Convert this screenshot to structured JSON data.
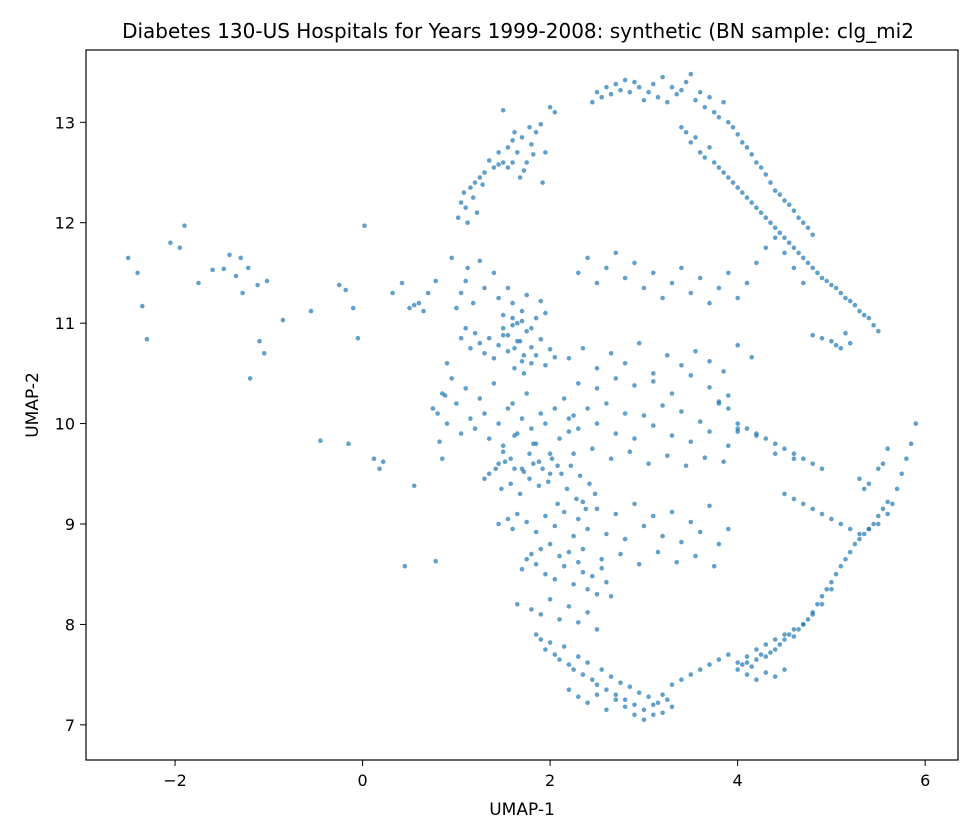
{
  "chart_data": {
    "type": "scatter",
    "title": "Diabetes 130-US Hospitals for Years 1999-2008: synthetic (BN sample: clg_mi2",
    "xlabel": "UMAP-1",
    "ylabel": "UMAP-2",
    "xlim": [
      -2.95,
      6.35
    ],
    "ylim": [
      6.65,
      13.72
    ],
    "xticks": [
      -2,
      0,
      2,
      4,
      6
    ],
    "yticks": [
      7,
      8,
      9,
      10,
      11,
      12,
      13
    ],
    "xtick_labels": [
      "−2",
      "0",
      "2",
      "4",
      "6"
    ],
    "ytick_labels": [
      "7",
      "8",
      "9",
      "10",
      "11",
      "12",
      "13"
    ],
    "grid": false,
    "legend": "none",
    "point_color": "#1f77b4",
    "series": [
      {
        "x": [
          -2.5,
          -2.4,
          -2.35,
          -2.3,
          -2.05,
          -1.95,
          -1.9,
          -1.75,
          -1.6,
          -1.48,
          -1.42,
          -1.35,
          -1.3,
          -1.28,
          -1.22,
          -1.12,
          -1.1,
          -1.05,
          -1.02,
          -1.2,
          -0.85,
          -0.55,
          -0.25,
          -0.18,
          -0.1,
          -0.05,
          0.02,
          -0.45,
          -0.15,
          0.12,
          0.18,
          0.22,
          0.32,
          0.42,
          0.45,
          0.5,
          0.55,
          0.6,
          0.65,
          0.7,
          0.75,
          0.78,
          0.82,
          0.85,
          0.88,
          0.9,
          0.95,
          0.55,
          0.78,
          1.02,
          1.05,
          1.08,
          1.1,
          1.12,
          1.15,
          1.18,
          1.2,
          1.22,
          1.25,
          1.28,
          1.3,
          1.35,
          1.4,
          1.45,
          1.5,
          1.55,
          1.6,
          1.62,
          1.65,
          1.7,
          1.75,
          1.78,
          1.82,
          1.85,
          1.9,
          1.92,
          1.95,
          2.0,
          2.05,
          1.5,
          1.45,
          1.55,
          1.6,
          1.68,
          1.72,
          1.8,
          1.0,
          1.05,
          1.1,
          1.12,
          1.18,
          1.25,
          1.3,
          1.4,
          1.45,
          1.5,
          1.55,
          1.6,
          1.65,
          1.7,
          1.75,
          1.8,
          1.85,
          1.9,
          1.95,
          1.5,
          1.55,
          1.62,
          1.68,
          1.72,
          0.8,
          0.85,
          0.9,
          0.95,
          1.0,
          1.05,
          1.1,
          1.15,
          1.2,
          1.25,
          1.3,
          1.35,
          1.4,
          1.45,
          1.5,
          1.55,
          1.6,
          1.65,
          1.7,
          1.75,
          1.8,
          1.85,
          1.9,
          1.95,
          2.0,
          2.05,
          2.1,
          2.15,
          2.2,
          2.25,
          1.45,
          1.5,
          1.58,
          1.62,
          1.7,
          1.78,
          1.82,
          1.88,
          2.0,
          2.08,
          1.3,
          1.35,
          1.42,
          1.48,
          1.52,
          1.58,
          1.62,
          1.68,
          1.72,
          1.78,
          1.82,
          1.88,
          1.92,
          1.98,
          2.02,
          2.08,
          2.12,
          2.18,
          2.22,
          2.28,
          2.32,
          2.38,
          2.42,
          2.48,
          1.45,
          1.55,
          1.6,
          1.65,
          1.75,
          1.85,
          1.95,
          2.05,
          2.15,
          2.25,
          2.35,
          1.7,
          1.75,
          1.8,
          1.85,
          1.9,
          1.95,
          2.0,
          2.05,
          2.1,
          2.15,
          2.2,
          2.25,
          2.3,
          2.35,
          2.4,
          2.45,
          2.5,
          2.55,
          2.6,
          2.65,
          1.65,
          1.8,
          1.9,
          2.0,
          2.1,
          2.2,
          2.3,
          2.4,
          2.5,
          1.85,
          1.9,
          1.95,
          2.0,
          2.05,
          2.1,
          2.15,
          2.2,
          2.25,
          2.3,
          2.35,
          2.4,
          2.45,
          2.5,
          2.55,
          2.6,
          2.65,
          2.7,
          2.75,
          2.8,
          2.85,
          2.9,
          2.95,
          3.0,
          3.05,
          3.1,
          3.15,
          3.2,
          3.25,
          3.3,
          2.2,
          2.3,
          2.4,
          2.5,
          2.6,
          2.7,
          2.8,
          2.9,
          3.0,
          3.1,
          3.2,
          3.3,
          3.4,
          3.5,
          3.6,
          3.7,
          3.8,
          3.9,
          4.0,
          4.1,
          4.2,
          4.3,
          4.4,
          4.5,
          4.6,
          4.7,
          4.8,
          4.9,
          5.0,
          2.45,
          2.5,
          2.55,
          2.6,
          2.65,
          2.7,
          2.75,
          2.8,
          2.85,
          2.9,
          2.95,
          3.0,
          3.05,
          3.1,
          3.15,
          3.2,
          3.25,
          3.3,
          3.35,
          3.4,
          3.45,
          3.5,
          3.55,
          3.6,
          3.65,
          3.7,
          3.75,
          3.8,
          3.85,
          3.9,
          3.95,
          4.0,
          4.05,
          4.1,
          4.15,
          4.2,
          4.25,
          4.3,
          4.35,
          4.4,
          4.45,
          4.5,
          4.55,
          4.6,
          4.65,
          4.7,
          4.75,
          4.8,
          3.4,
          3.45,
          3.5,
          3.55,
          3.6,
          3.65,
          3.7,
          3.75,
          3.8,
          3.85,
          3.9,
          3.95,
          4.0,
          4.05,
          4.1,
          4.15,
          4.2,
          4.25,
          4.3,
          4.35,
          4.4,
          4.45,
          4.5,
          4.55,
          4.6,
          4.65,
          4.7,
          4.75,
          4.8,
          4.85,
          4.9,
          4.95,
          5.0,
          5.05,
          5.1,
          5.15,
          5.2,
          5.25,
          5.3,
          5.35,
          5.4,
          5.45,
          5.5,
          4.8,
          4.9,
          5.0,
          5.05,
          5.1,
          5.15,
          5.2,
          4.5,
          4.6,
          4.7,
          4.8,
          4.9,
          5.0,
          5.1,
          5.2,
          5.3,
          5.4,
          5.5,
          5.6,
          5.65,
          5.7,
          5.75,
          5.8,
          5.85,
          5.9,
          5.4,
          5.5,
          5.55,
          5.6,
          5.3,
          5.35,
          4.0,
          4.05,
          4.1,
          4.15,
          4.2,
          4.25,
          4.3,
          4.35,
          4.4,
          4.45,
          4.5,
          4.55,
          4.6,
          4.65,
          4.7,
          4.75,
          4.8,
          4.85,
          4.9,
          4.95,
          5.0,
          5.05,
          5.1,
          5.15,
          5.2,
          5.25,
          5.3,
          5.35,
          5.4,
          5.45,
          5.5,
          5.55,
          5.6,
          4.1,
          4.2,
          4.3,
          4.4,
          4.5,
          3.8,
          3.9,
          4.0,
          4.1,
          4.2,
          4.3,
          4.4,
          4.5,
          4.6,
          4.7,
          4.8,
          4.9,
          4.0,
          4.2,
          4.4,
          4.6,
          1.05,
          1.1,
          1.15,
          1.2,
          1.25,
          1.3,
          1.35,
          1.4,
          1.45,
          1.5,
          1.55,
          1.6,
          1.65,
          1.7,
          1.75,
          1.8,
          1.85,
          1.9,
          1.95,
          2.0,
          2.05,
          1.6,
          1.62,
          1.7,
          1.72,
          1.8,
          2.3,
          2.4,
          2.5,
          2.6,
          2.7,
          2.8,
          2.9,
          3.0,
          3.1,
          3.2,
          3.3,
          3.4,
          3.5,
          3.6,
          3.7,
          3.8,
          3.9,
          4.0,
          4.1,
          4.2,
          4.3,
          4.4,
          4.5,
          4.6,
          4.7,
          2.2,
          2.35,
          2.5,
          2.65,
          2.8,
          2.95,
          3.1,
          3.25,
          3.4,
          3.55,
          3.7,
          3.85,
          4.0,
          4.15,
          2.3,
          2.5,
          2.7,
          2.9,
          3.1,
          3.3,
          3.5,
          3.7,
          3.9,
          2.2,
          2.3,
          2.4,
          2.5,
          2.6,
          2.7,
          2.8,
          2.9,
          3.0,
          3.1,
          3.2,
          3.3,
          3.4,
          3.5,
          3.6,
          3.7,
          3.8,
          3.9,
          4.0,
          2.25,
          2.45,
          2.65,
          2.85,
          3.05,
          3.25,
          3.45,
          3.65,
          3.85,
          2.3,
          2.4,
          2.5,
          2.6,
          2.7,
          2.8,
          2.9,
          3.0,
          3.1,
          3.2,
          3.3,
          3.4,
          3.5,
          3.6,
          3.7,
          3.8,
          3.9,
          2.35,
          2.55,
          2.75,
          2.95,
          3.15,
          3.35,
          3.55,
          3.75
        ],
        "y": [
          11.65,
          11.5,
          11.17,
          10.84,
          11.8,
          11.75,
          11.97,
          11.4,
          11.53,
          11.54,
          11.68,
          11.47,
          11.65,
          11.3,
          11.55,
          11.38,
          10.82,
          10.7,
          11.42,
          10.45,
          11.03,
          11.12,
          11.38,
          11.33,
          11.15,
          10.85,
          11.97,
          9.83,
          9.8,
          9.65,
          9.55,
          9.62,
          11.3,
          11.4,
          8.58,
          11.15,
          9.38,
          11.2,
          11.12,
          11.3,
          10.15,
          11.42,
          9.82,
          9.65,
          10.28,
          10.6,
          11.65,
          11.18,
          8.63,
          12.05,
          12.2,
          12.3,
          12.15,
          12.0,
          12.35,
          12.25,
          12.4,
          12.1,
          12.45,
          12.38,
          12.5,
          12.62,
          12.55,
          12.7,
          12.6,
          12.75,
          12.82,
          12.9,
          12.7,
          12.85,
          12.6,
          12.95,
          12.68,
          12.9,
          12.98,
          12.4,
          12.7,
          13.15,
          13.1,
          13.12,
          12.58,
          12.55,
          12.6,
          12.45,
          12.52,
          12.78,
          11.15,
          11.3,
          11.42,
          11.55,
          11.2,
          11.62,
          11.35,
          11.5,
          11.25,
          11.08,
          11.35,
          11.2,
          11.0,
          11.12,
          11.28,
          10.95,
          11.05,
          11.22,
          11.1,
          10.95,
          10.88,
          10.75,
          10.82,
          10.68,
          10.1,
          10.3,
          10.0,
          10.45,
          10.2,
          9.9,
          10.35,
          10.05,
          9.95,
          10.25,
          10.1,
          9.85,
          10.4,
          10.0,
          9.78,
          10.15,
          10.2,
          9.9,
          10.05,
          10.3,
          9.95,
          9.8,
          10.1,
          10.0,
          9.7,
          10.15,
          9.85,
          10.25,
          9.92,
          10.08,
          9.6,
          9.72,
          9.65,
          9.88,
          9.55,
          9.7,
          9.8,
          9.62,
          9.5,
          9.58,
          9.45,
          9.5,
          9.55,
          9.35,
          9.62,
          9.4,
          9.55,
          9.3,
          9.52,
          9.45,
          9.6,
          9.38,
          9.55,
          9.42,
          9.65,
          9.2,
          9.5,
          9.35,
          9.58,
          9.25,
          9.48,
          9.15,
          9.4,
          9.3,
          9.0,
          9.05,
          8.95,
          9.1,
          9.02,
          8.92,
          9.08,
          8.98,
          9.12,
          8.88,
          9.22,
          8.55,
          8.65,
          8.7,
          8.6,
          8.75,
          8.5,
          8.8,
          8.45,
          8.68,
          8.58,
          8.72,
          8.4,
          8.62,
          8.52,
          8.35,
          8.48,
          8.3,
          8.56,
          8.42,
          8.28,
          8.2,
          8.15,
          8.1,
          8.25,
          8.05,
          8.18,
          8.02,
          8.12,
          7.95,
          7.9,
          7.85,
          7.75,
          7.82,
          7.7,
          7.65,
          7.78,
          7.6,
          7.55,
          7.68,
          7.5,
          7.62,
          7.45,
          7.4,
          7.55,
          7.35,
          7.48,
          7.3,
          7.42,
          7.25,
          7.38,
          7.2,
          7.32,
          7.15,
          7.28,
          7.1,
          7.22,
          7.12,
          7.25,
          7.18,
          7.35,
          7.28,
          7.22,
          7.3,
          7.15,
          7.25,
          7.18,
          7.1,
          7.05,
          7.2,
          7.3,
          7.4,
          7.45,
          7.5,
          7.55,
          7.6,
          7.65,
          7.7,
          7.62,
          7.68,
          7.75,
          7.8,
          7.85,
          7.9,
          7.95,
          8.0,
          8.1,
          8.2,
          8.35,
          13.2,
          13.3,
          13.25,
          13.35,
          13.28,
          13.38,
          13.32,
          13.42,
          13.3,
          13.4,
          13.35,
          13.22,
          13.3,
          13.38,
          13.25,
          13.45,
          13.2,
          13.35,
          13.28,
          13.32,
          13.4,
          13.48,
          13.22,
          13.3,
          13.15,
          13.25,
          13.1,
          13.05,
          13.2,
          13.0,
          12.95,
          12.88,
          12.8,
          12.75,
          12.68,
          12.6,
          12.55,
          12.48,
          12.4,
          12.32,
          12.28,
          12.22,
          12.18,
          12.12,
          12.05,
          12.0,
          11.95,
          11.88,
          12.95,
          12.9,
          12.8,
          12.85,
          12.7,
          12.65,
          12.75,
          12.6,
          12.55,
          12.5,
          12.45,
          12.4,
          12.35,
          12.3,
          12.25,
          12.2,
          12.15,
          12.1,
          12.05,
          12.0,
          11.95,
          11.9,
          11.85,
          11.8,
          11.75,
          11.7,
          11.65,
          11.6,
          11.55,
          11.5,
          11.45,
          11.42,
          11.38,
          11.35,
          11.3,
          11.25,
          11.22,
          11.18,
          11.12,
          11.08,
          11.05,
          10.98,
          10.92,
          10.88,
          10.85,
          10.82,
          10.78,
          10.75,
          10.9,
          10.8,
          9.3,
          9.25,
          9.2,
          9.15,
          9.1,
          9.05,
          9.0,
          8.95,
          8.9,
          8.95,
          9.0,
          9.1,
          9.2,
          9.35,
          9.5,
          9.65,
          9.8,
          10.0,
          9.4,
          9.55,
          9.6,
          9.75,
          9.45,
          9.35,
          7.55,
          7.6,
          7.62,
          7.58,
          7.65,
          7.7,
          7.68,
          7.72,
          7.75,
          7.8,
          7.85,
          7.9,
          7.88,
          7.95,
          8.0,
          8.05,
          8.12,
          8.2,
          8.28,
          8.35,
          8.42,
          8.5,
          8.58,
          8.65,
          8.72,
          8.8,
          8.85,
          8.9,
          8.95,
          9.0,
          9.08,
          9.15,
          9.22,
          7.5,
          7.45,
          7.52,
          7.48,
          7.55,
          10.2,
          10.15,
          10.0,
          9.95,
          9.9,
          9.85,
          9.8,
          9.75,
          9.7,
          9.65,
          9.6,
          9.55,
          9.92,
          9.88,
          9.7,
          9.65,
          10.85,
          10.95,
          10.75,
          10.9,
          10.8,
          10.7,
          10.85,
          10.65,
          10.78,
          10.88,
          10.72,
          10.98,
          10.82,
          10.62,
          10.92,
          10.76,
          10.68,
          10.84,
          10.58,
          10.74,
          10.66,
          11.05,
          10.55,
          11.02,
          10.5,
          10.6,
          11.5,
          11.65,
          11.4,
          11.55,
          11.7,
          11.45,
          11.6,
          11.35,
          11.5,
          11.25,
          11.4,
          11.55,
          11.3,
          11.45,
          11.2,
          11.35,
          11.5,
          11.25,
          11.4,
          11.6,
          11.75,
          11.85,
          11.7,
          11.55,
          11.4,
          10.65,
          10.75,
          10.55,
          10.7,
          10.6,
          10.8,
          10.5,
          10.68,
          10.58,
          10.72,
          10.62,
          10.52,
          10.78,
          10.66,
          10.4,
          10.35,
          10.45,
          10.38,
          10.42,
          10.3,
          10.48,
          10.36,
          10.28,
          10.05,
          9.95,
          10.15,
          10.0,
          10.2,
          9.9,
          10.1,
          9.85,
          10.08,
          9.98,
          10.18,
          9.88,
          10.12,
          9.82,
          10.02,
          9.92,
          10.22,
          9.78,
          9.95,
          9.7,
          9.75,
          9.65,
          9.72,
          9.6,
          9.68,
          9.58,
          9.66,
          9.62,
          9.05,
          8.95,
          9.15,
          8.9,
          9.1,
          8.85,
          9.2,
          8.98,
          9.08,
          8.88,
          9.12,
          8.82,
          9.02,
          8.92,
          9.18,
          8.8,
          8.95,
          8.75,
          8.65,
          8.7,
          8.6,
          8.72,
          8.62,
          8.68,
          8.58
        ]
      }
    ]
  }
}
